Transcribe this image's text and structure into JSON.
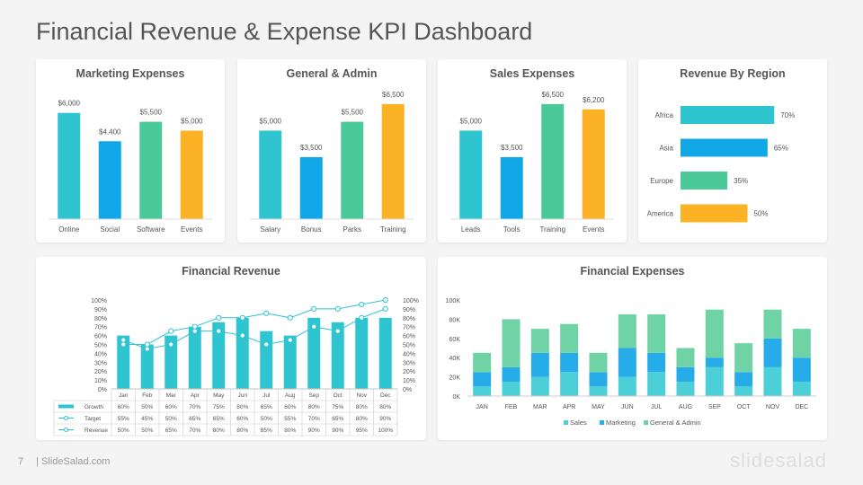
{
  "title": "Financial Revenue & Expense KPI Dashboard",
  "footer": {
    "page": "7",
    "site": "| SlideSalad.com",
    "logo": "slidesalad"
  },
  "colors": {
    "teal": "#2ec4d0",
    "blue": "#11a7e6",
    "green": "#4cc999",
    "orange": "#fbb224"
  },
  "chart_data": [
    {
      "id": "marketing",
      "type": "bar",
      "title": "Marketing Expenses",
      "categories": [
        "Online",
        "Social",
        "Software",
        "Events"
      ],
      "values": [
        6000,
        4400,
        5500,
        5000
      ],
      "labels": [
        "$6,000",
        "$4,400",
        "$5,500",
        "$5,000"
      ],
      "ylim": [
        0,
        7000
      ]
    },
    {
      "id": "general",
      "type": "bar",
      "title": "General & Admin",
      "categories": [
        "Salary",
        "Bonus",
        "Parks",
        "Training"
      ],
      "values": [
        5000,
        3500,
        5500,
        6500
      ],
      "labels": [
        "$5,000",
        "$3,500",
        "$5,500",
        "$6,500"
      ],
      "ylim": [
        0,
        7000
      ]
    },
    {
      "id": "sales",
      "type": "bar",
      "title": "Sales Expenses",
      "categories": [
        "Leads",
        "Tools",
        "Training",
        "Events"
      ],
      "values": [
        5000,
        3500,
        6500,
        6200
      ],
      "labels": [
        "$5,000",
        "$3,500",
        "$6,500",
        "$6,200"
      ],
      "ylim": [
        0,
        7000
      ]
    },
    {
      "id": "region",
      "type": "bar",
      "orientation": "horizontal",
      "title": "Revenue By Region",
      "categories": [
        "Africa",
        "Asia",
        "Europe",
        "America"
      ],
      "values": [
        70,
        65,
        35,
        50
      ],
      "labels": [
        "70%",
        "65%",
        "35%",
        "50%"
      ]
    },
    {
      "id": "revenue",
      "type": "bar",
      "title": "Financial Revenue",
      "categories": [
        "Jan",
        "Feb",
        "Mar",
        "Apr",
        "May",
        "Jun",
        "Jul",
        "Aug",
        "Sep",
        "Oct",
        "Nov",
        "Dec"
      ],
      "yticks": [
        "0%",
        "10%",
        "20%",
        "30%",
        "40%",
        "50%",
        "60%",
        "70%",
        "80%",
        "90%",
        "100%"
      ],
      "ylim": [
        0,
        100
      ],
      "series": [
        {
          "name": "Growth",
          "kind": "bar",
          "values": [
            60,
            50,
            60,
            70,
            75,
            80,
            65,
            60,
            80,
            75,
            80,
            80
          ],
          "labels": [
            "60%",
            "50%",
            "60%",
            "70%",
            "75%",
            "80%",
            "65%",
            "60%",
            "80%",
            "75%",
            "80%",
            "80%"
          ]
        },
        {
          "name": "Target",
          "kind": "line",
          "values": [
            55,
            45,
            50,
            65,
            65,
            60,
            50,
            55,
            70,
            65,
            80,
            90
          ],
          "labels": [
            "55%",
            "45%",
            "50%",
            "65%",
            "65%",
            "60%",
            "50%",
            "55%",
            "70%",
            "65%",
            "80%",
            "90%"
          ]
        },
        {
          "name": "Revenue",
          "kind": "line",
          "values": [
            50,
            50,
            65,
            70,
            80,
            80,
            85,
            80,
            90,
            90,
            95,
            100
          ],
          "labels": [
            "50%",
            "50%",
            "65%",
            "70%",
            "80%",
            "80%",
            "85%",
            "80%",
            "90%",
            "90%",
            "95%",
            "100%"
          ]
        }
      ]
    },
    {
      "id": "expenses",
      "type": "bar",
      "stacked": true,
      "title": "Financial Expenses",
      "categories": [
        "JAN",
        "FEB",
        "MAR",
        "APR",
        "MAY",
        "JUN",
        "JUL",
        "AUG",
        "SEP",
        "OCT",
        "NOV",
        "DEC"
      ],
      "yticks": [
        "0K",
        "20K",
        "40K",
        "60K",
        "80K",
        "100K"
      ],
      "ylim": [
        0,
        100
      ],
      "series": [
        {
          "name": "Sales",
          "values": [
            10,
            15,
            20,
            25,
            10,
            20,
            25,
            15,
            30,
            10,
            30,
            15
          ]
        },
        {
          "name": "Marketing",
          "values": [
            15,
            15,
            25,
            20,
            15,
            30,
            20,
            15,
            10,
            15,
            30,
            25
          ]
        },
        {
          "name": "General & Admin",
          "values": [
            20,
            50,
            25,
            30,
            20,
            35,
            40,
            20,
            50,
            30,
            30,
            30
          ]
        }
      ]
    }
  ]
}
